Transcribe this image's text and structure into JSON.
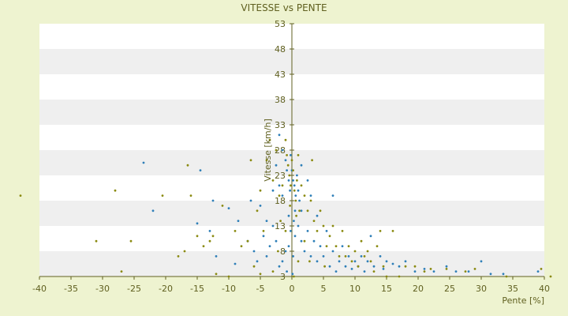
{
  "chart_data": {
    "type": "scatter",
    "title": "VITESSE vs PENTE",
    "xlabel": "Pente [%]",
    "ylabel": "Vitesse [km/h]",
    "xlim": [
      -40,
      40
    ],
    "ylim": [
      3,
      53
    ],
    "x_ticks": [
      -40,
      -35,
      -30,
      -25,
      -20,
      -15,
      -10,
      -5,
      0,
      5,
      10,
      15,
      20,
      25,
      30,
      35,
      40
    ],
    "y_ticks": [
      3,
      8,
      13,
      18,
      23,
      28,
      33,
      38,
      43,
      48,
      53
    ],
    "grid": true,
    "legend": "none",
    "colors": {
      "background": "#eef3d0",
      "plot_band_light": "#ffffff",
      "plot_band_dark": "#efefef",
      "axis": "#606020",
      "text": "#606020",
      "series_a": "#2e7fb8",
      "series_b": "#8a8a10"
    },
    "series": [
      {
        "color": "#2e7fb8",
        "points": [
          [
            -23.5,
            25.5
          ],
          [
            -22,
            16
          ],
          [
            -15,
            13.5
          ],
          [
            -14.5,
            24
          ],
          [
            -13,
            12
          ],
          [
            -12.5,
            18
          ],
          [
            -10,
            16.5
          ],
          [
            -8.5,
            14
          ],
          [
            -7,
            10
          ],
          [
            -6.5,
            18
          ],
          [
            -6,
            8
          ],
          [
            -5.5,
            6
          ],
          [
            -5,
            17
          ],
          [
            -4.5,
            11
          ],
          [
            -4,
            14
          ],
          [
            -3.5,
            9
          ],
          [
            -3,
            20
          ],
          [
            -2.5,
            25
          ],
          [
            -2,
            31
          ],
          [
            -1.5,
            28
          ],
          [
            -1,
            26
          ],
          [
            -0.8,
            24
          ],
          [
            -0.5,
            22
          ],
          [
            -0.3,
            20
          ],
          [
            -0.2,
            27
          ],
          [
            0,
            24
          ],
          [
            0.2,
            22
          ],
          [
            0.4,
            21
          ],
          [
            0.6,
            19
          ],
          [
            0.8,
            23
          ],
          [
            1,
            20
          ],
          [
            1.2,
            18
          ],
          [
            1.5,
            16
          ],
          [
            0.3,
            14
          ],
          [
            -0.2,
            12
          ],
          [
            0.5,
            11
          ],
          [
            -0.5,
            9
          ],
          [
            0.2,
            7
          ],
          [
            1,
            13
          ],
          [
            1.5,
            10
          ],
          [
            2,
            8
          ],
          [
            2.5,
            12
          ],
          [
            3,
            7
          ],
          [
            3.5,
            10
          ],
          [
            4,
            6
          ],
          [
            4.5,
            9
          ],
          [
            5,
            7
          ],
          [
            5.5,
            12
          ],
          [
            6,
            5
          ],
          [
            6.5,
            8
          ],
          [
            7,
            4
          ],
          [
            7.5,
            6
          ],
          [
            8,
            9
          ],
          [
            8.5,
            5
          ],
          [
            9,
            7
          ],
          [
            9.5,
            4.5
          ],
          [
            10,
            6
          ],
          [
            10.5,
            5
          ],
          [
            11,
            7
          ],
          [
            11.5,
            4
          ],
          [
            12,
            6
          ],
          [
            12.5,
            11
          ],
          [
            13,
            5
          ],
          [
            14,
            7
          ],
          [
            14.5,
            4.5
          ],
          [
            15,
            6
          ],
          [
            16,
            5.5
          ],
          [
            17,
            5
          ],
          [
            18,
            6
          ],
          [
            19.5,
            4
          ],
          [
            21,
            4.5
          ],
          [
            22.5,
            4
          ],
          [
            24.5,
            5
          ],
          [
            26,
            4
          ],
          [
            28,
            4
          ],
          [
            30,
            6
          ],
          [
            31.5,
            3.5
          ],
          [
            33.5,
            3.5
          ],
          [
            39,
            4
          ],
          [
            -12,
            7
          ],
          [
            -9,
            5.5
          ],
          [
            -4,
            7
          ],
          [
            -2,
            5
          ],
          [
            -1,
            8
          ],
          [
            -0.5,
            15
          ],
          [
            0.5,
            16
          ],
          [
            -1.5,
            19
          ],
          [
            -2,
            21
          ],
          [
            1.5,
            25
          ],
          [
            2.5,
            22
          ],
          [
            3,
            19
          ],
          [
            6.5,
            19
          ],
          [
            4,
            15
          ],
          [
            -3,
            13
          ],
          [
            -2.5,
            10
          ],
          [
            -1.5,
            6
          ],
          [
            -0.8,
            4
          ],
          [
            0.1,
            3.5
          ]
        ]
      },
      {
        "color": "#8a8a10",
        "points": [
          [
            -43,
            19
          ],
          [
            -31,
            10
          ],
          [
            -28,
            20
          ],
          [
            -27,
            4
          ],
          [
            -25.5,
            10
          ],
          [
            -20.5,
            19
          ],
          [
            -18,
            7
          ],
          [
            -17,
            8
          ],
          [
            -16.5,
            25
          ],
          [
            -16,
            19
          ],
          [
            -15,
            11
          ],
          [
            -14,
            9
          ],
          [
            -13,
            10
          ],
          [
            -12.5,
            11
          ],
          [
            -12,
            3.5
          ],
          [
            -11,
            17
          ],
          [
            -10,
            3
          ],
          [
            -9,
            12
          ],
          [
            -8,
            9
          ],
          [
            -7,
            10
          ],
          [
            -6.5,
            26
          ],
          [
            -6,
            5
          ],
          [
            -5.5,
            16
          ],
          [
            -5,
            20
          ],
          [
            -4.5,
            12
          ],
          [
            -4,
            26
          ],
          [
            -3.5,
            30
          ],
          [
            -3,
            22
          ],
          [
            -2.5,
            28
          ],
          [
            -2,
            19
          ],
          [
            -1.5,
            21
          ],
          [
            -1,
            30
          ],
          [
            -0.8,
            27
          ],
          [
            -0.6,
            25
          ],
          [
            -0.4,
            23
          ],
          [
            -0.2,
            21
          ],
          [
            0,
            26
          ],
          [
            0.2,
            24
          ],
          [
            0.4,
            20
          ],
          [
            0.6,
            18
          ],
          [
            0.8,
            22
          ],
          [
            1,
            27
          ],
          [
            1.2,
            16
          ],
          [
            1.5,
            21
          ],
          [
            2,
            19
          ],
          [
            2.5,
            16
          ],
          [
            3,
            18
          ],
          [
            3.5,
            14
          ],
          [
            4,
            12
          ],
          [
            4.5,
            16
          ],
          [
            5,
            13
          ],
          [
            5.5,
            9
          ],
          [
            6,
            11
          ],
          [
            6.5,
            13
          ],
          [
            7,
            9
          ],
          [
            7.5,
            7
          ],
          [
            8,
            12
          ],
          [
            8.5,
            7
          ],
          [
            9,
            9
          ],
          [
            9.5,
            6
          ],
          [
            10,
            8
          ],
          [
            10.5,
            5
          ],
          [
            11,
            10
          ],
          [
            11.5,
            7
          ],
          [
            12,
            8
          ],
          [
            12.5,
            6
          ],
          [
            13,
            4
          ],
          [
            13.5,
            9
          ],
          [
            14,
            12
          ],
          [
            14.5,
            5
          ],
          [
            15,
            3
          ],
          [
            16,
            12
          ],
          [
            17,
            3
          ],
          [
            18,
            5
          ],
          [
            19.5,
            5
          ],
          [
            21,
            4
          ],
          [
            22,
            4.5
          ],
          [
            24.5,
            4.5
          ],
          [
            27.5,
            4
          ],
          [
            29,
            4.5
          ],
          [
            34,
            3
          ],
          [
            39.5,
            4.5
          ],
          [
            41,
            3
          ],
          [
            -5,
            3.5
          ],
          [
            -3,
            4
          ],
          [
            -1,
            12
          ],
          [
            0.3,
            3
          ],
          [
            1,
            6
          ],
          [
            2,
            10
          ],
          [
            2.8,
            6
          ],
          [
            3.2,
            26
          ],
          [
            -0.3,
            17
          ],
          [
            0.7,
            15
          ],
          [
            -1.8,
            14
          ],
          [
            -2.2,
            8
          ],
          [
            5.2,
            5
          ]
        ]
      }
    ]
  }
}
